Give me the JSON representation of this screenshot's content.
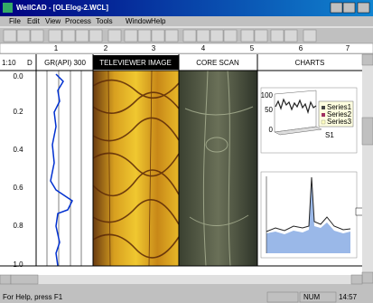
{
  "window": {
    "title": "WellCAD - [OLElog-2.WCL]"
  },
  "menu": [
    "File",
    "Edit",
    "View",
    "Process",
    "Tools",
    "Window",
    "Help"
  ],
  "ruler": [
    "1",
    "2",
    "3",
    "4",
    "5",
    "6",
    "7"
  ],
  "tracks": [
    "1:10",
    "D",
    "GR(API) 300",
    "TELEVIEWER IMAGE",
    "CORE SCAN",
    "CHARTS"
  ],
  "depths": [
    "0.0",
    "0.2",
    "0.4",
    "0.6",
    "0.8",
    "1.0"
  ],
  "chart1": {
    "yticks": [
      "100",
      "50",
      "0"
    ],
    "legend": [
      "Series1",
      "Series2",
      "Series3"
    ],
    "xlabel": "S1"
  },
  "status": {
    "help": "For Help, press F1",
    "num": "NUM",
    "time": "14:57"
  }
}
